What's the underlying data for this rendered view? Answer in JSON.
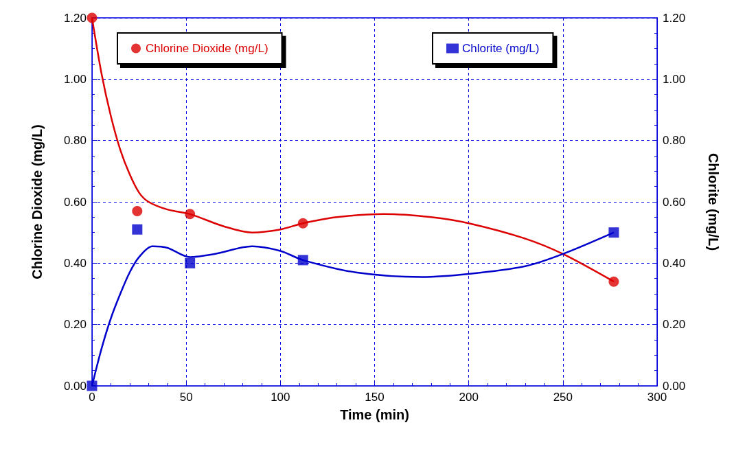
{
  "chart_data": {
    "type": "scatter",
    "xlabel": "Time (min)",
    "ylabel": "Chlorine Dioxide (mg/L)",
    "y2label": "Chlorite (mg/L)",
    "xlim": [
      0,
      300
    ],
    "xticks": [
      0,
      50,
      100,
      150,
      200,
      250,
      300
    ],
    "ylim": [
      0,
      1.2
    ],
    "yticks": [
      {
        "value": 0,
        "label": "0.00"
      },
      {
        "value": 0.2,
        "label": "0.20"
      },
      {
        "value": 0.4,
        "label": "0.40"
      },
      {
        "value": 0.6,
        "label": "0.60"
      },
      {
        "value": 0.8,
        "label": "0.80"
      },
      {
        "value": 1,
        "label": "1.00"
      },
      {
        "value": 1.2,
        "label": "1.20"
      }
    ],
    "y2lim": [
      0,
      1.2
    ],
    "y2ticks": [
      {
        "value": 0,
        "label": "0.00"
      },
      {
        "value": 0.2,
        "label": "0.20"
      },
      {
        "value": 0.4,
        "label": "0.40"
      },
      {
        "value": 0.6,
        "label": "0.60"
      },
      {
        "value": 0.8,
        "label": "0.80"
      },
      {
        "value": 1,
        "label": "1.00"
      },
      {
        "value": 1.2,
        "label": "1.20"
      }
    ],
    "grid": true,
    "legend": "top",
    "series": [
      {
        "name": "Chlorine Dioxide (mg/L)",
        "marker": "circle",
        "color": "#dd0000",
        "x": [
          0,
          24,
          52,
          112,
          277
        ],
        "values": [
          1.2,
          0.57,
          0.56,
          0.53,
          0.34
        ]
      },
      {
        "name": "Chlorite (mg/L)",
        "marker": "square",
        "color": "#0000cc",
        "axis": "y2",
        "x": [
          0,
          24,
          52,
          112,
          277
        ],
        "values": [
          0,
          0.51,
          0.4,
          0.41,
          0.5
        ]
      },
      {
        "type": "line",
        "marker": "none",
        "color": "#dd0000",
        "x": [
          0,
          5,
          10,
          15,
          20,
          25,
          30,
          40,
          52,
          70,
          85,
          100,
          112,
          130,
          155,
          180,
          200,
          230,
          250,
          277
        ],
        "values": [
          1.2,
          1.02,
          0.88,
          0.77,
          0.69,
          0.63,
          0.6,
          0.575,
          0.56,
          0.52,
          0.5,
          0.51,
          0.53,
          0.55,
          0.56,
          0.55,
          0.53,
          0.48,
          0.43,
          0.34
        ]
      },
      {
        "type": "line",
        "marker": "none",
        "color": "#0000cc",
        "axis": "y2",
        "x": [
          0,
          5,
          10,
          15,
          20,
          25,
          32,
          40,
          52,
          65,
          85,
          100,
          112,
          140,
          175,
          200,
          230,
          250,
          277
        ],
        "values": [
          0,
          0.12,
          0.22,
          0.3,
          0.37,
          0.42,
          0.455,
          0.45,
          0.42,
          0.43,
          0.455,
          0.44,
          0.41,
          0.37,
          0.355,
          0.365,
          0.39,
          0.43,
          0.5
        ]
      }
    ]
  }
}
